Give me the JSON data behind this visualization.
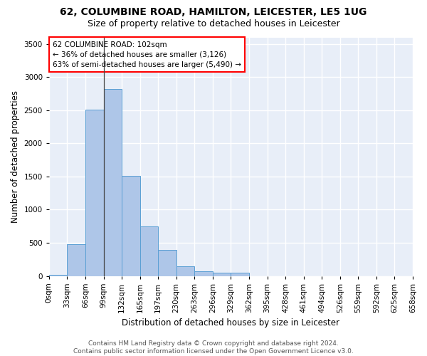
{
  "title_line1": "62, COLUMBINE ROAD, HAMILTON, LEICESTER, LE5 1UG",
  "title_line2": "Size of property relative to detached houses in Leicester",
  "xlabel": "Distribution of detached houses by size in Leicester",
  "ylabel": "Number of detached properties",
  "footer_line1": "Contains HM Land Registry data © Crown copyright and database right 2024.",
  "footer_line2": "Contains public sector information licensed under the Open Government Licence v3.0.",
  "bin_labels": [
    "0sqm",
    "33sqm",
    "66sqm",
    "99sqm",
    "132sqm",
    "165sqm",
    "197sqm",
    "230sqm",
    "263sqm",
    "296sqm",
    "329sqm",
    "362sqm",
    "395sqm",
    "428sqm",
    "461sqm",
    "494sqm",
    "526sqm",
    "559sqm",
    "592sqm",
    "625sqm",
    "658sqm"
  ],
  "bar_values": [
    20,
    480,
    2510,
    2820,
    1510,
    750,
    390,
    145,
    70,
    50,
    50,
    0,
    0,
    0,
    0,
    0,
    0,
    0,
    0,
    0
  ],
  "bar_color": "#aec6e8",
  "bar_edge_color": "#5a9fd4",
  "property_line_x": 3.0,
  "annotation_text_line1": "62 COLUMBINE ROAD: 102sqm",
  "annotation_text_line2": "← 36% of detached houses are smaller (3,126)",
  "annotation_text_line3": "63% of semi-detached houses are larger (5,490) →",
  "ylim": [
    0,
    3600
  ],
  "yticks": [
    0,
    500,
    1000,
    1500,
    2000,
    2500,
    3000,
    3500
  ],
  "background_color": "#e8eef8",
  "grid_color": "#ffffff",
  "title_fontsize": 10,
  "subtitle_fontsize": 9,
  "axis_label_fontsize": 8.5,
  "tick_fontsize": 7.5,
  "annotation_fontsize": 7.5,
  "footer_fontsize": 6.5
}
